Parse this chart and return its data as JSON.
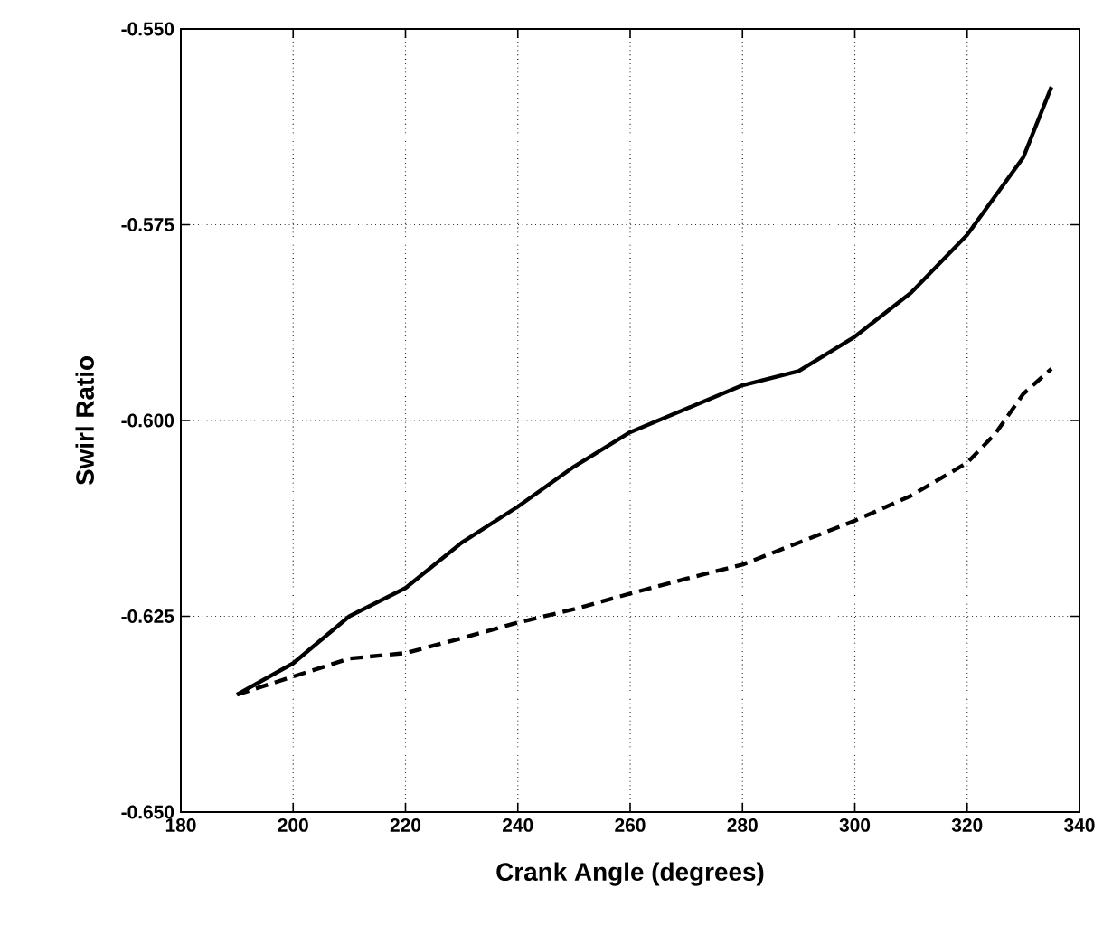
{
  "chart_data": {
    "type": "line",
    "xlabel": "Crank Angle (degrees)",
    "ylabel": "Swirl Ratio",
    "xlim": [
      180,
      340
    ],
    "xticks": [
      180,
      200,
      220,
      240,
      260,
      280,
      300,
      320,
      340
    ],
    "ylim": [
      -0.65,
      -0.55
    ],
    "yticks": [
      {
        "value": -0.65,
        "label": "-0.650"
      },
      {
        "value": -0.625,
        "label": "-0.625"
      },
      {
        "value": -0.6,
        "label": "-0.600"
      },
      {
        "value": -0.575,
        "label": "-0.575"
      },
      {
        "value": -0.55,
        "label": "-0.550"
      }
    ],
    "grid": true,
    "series": [
      {
        "color": "#000000",
        "line_style": "solid",
        "x": [
          190,
          200,
          210,
          220,
          230,
          240,
          250,
          260,
          270,
          280,
          290,
          300,
          310,
          320,
          330,
          335
        ],
        "values": [
          -0.635,
          -0.631,
          -0.625,
          -0.6214,
          -0.6156,
          -0.611,
          -0.6059,
          -0.6015,
          -0.5985,
          -0.5955,
          -0.5937,
          -0.5893,
          -0.5837,
          -0.5763,
          -0.5664,
          -0.5574
        ]
      },
      {
        "color": "#000000",
        "line_style": "dashed",
        "x": [
          190,
          200,
          210,
          220,
          230,
          240,
          250,
          260,
          270,
          280,
          290,
          300,
          310,
          320,
          325,
          330,
          335
        ],
        "values": [
          -0.635,
          -0.6327,
          -0.6304,
          -0.6297,
          -0.6278,
          -0.6258,
          -0.6241,
          -0.6221,
          -0.6202,
          -0.6184,
          -0.6156,
          -0.6128,
          -0.6096,
          -0.6054,
          -0.6017,
          -0.5966,
          -0.5934
        ]
      }
    ]
  }
}
